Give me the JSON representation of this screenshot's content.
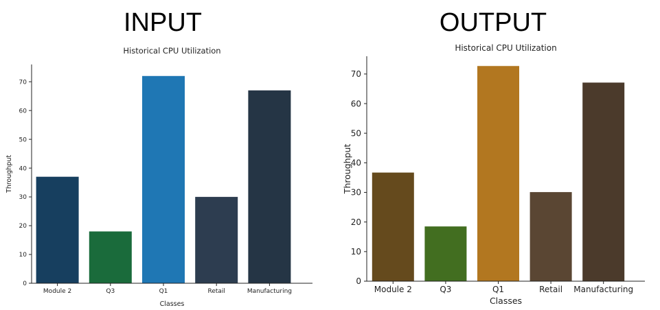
{
  "headings": {
    "left": "INPUT",
    "right": "OUTPUT"
  },
  "chart_data": [
    {
      "type": "bar",
      "title": "Historical CPU Utilization",
      "xlabel": "Classes",
      "ylabel": "Throughput",
      "categories": [
        "Module 2",
        "Q3",
        "Q1",
        "Retail",
        "Manufacturing"
      ],
      "values": [
        37,
        18,
        72,
        30,
        67
      ],
      "colors": [
        "#173f5f",
        "#1a6b3b",
        "#1f77b4",
        "#2d3d50",
        "#253545"
      ],
      "ylim": [
        0,
        76
      ],
      "yticks": [
        0,
        10,
        20,
        30,
        40,
        50,
        60,
        70
      ],
      "grid": false
    },
    {
      "type": "bar",
      "title": "Historical CPU Utilization",
      "xlabel": "Classes",
      "ylabel": "Throughput",
      "categories": [
        "Module 2",
        "Q3",
        "Q1",
        "Retail",
        "Manufacturing"
      ],
      "values": [
        36.7,
        18.5,
        72.7,
        30.1,
        67.1
      ],
      "colors": [
        "#654a1d",
        "#426e20",
        "#b27720",
        "#5a4633",
        "#4b3a2b"
      ],
      "ylim": [
        0,
        76
      ],
      "yticks": [
        0,
        10,
        20,
        30,
        40,
        50,
        60,
        70
      ],
      "grid": false
    }
  ]
}
